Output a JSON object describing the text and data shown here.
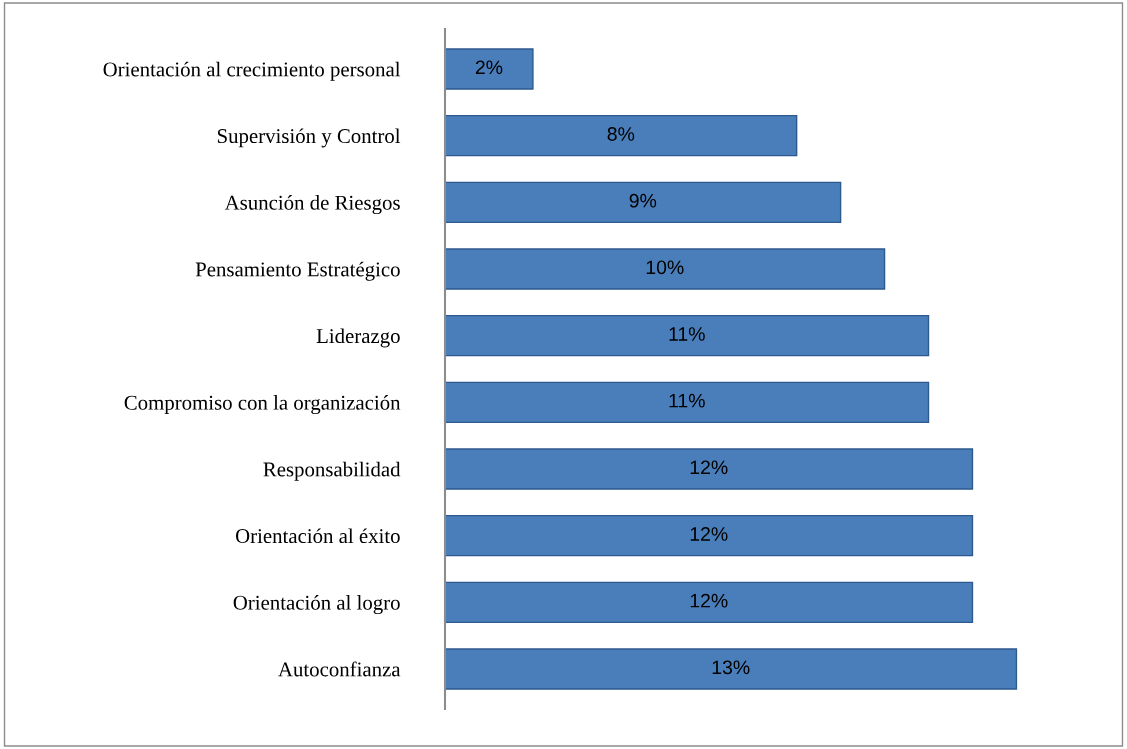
{
  "chart_data": {
    "type": "bar",
    "orientation": "horizontal",
    "categories": [
      "Orientación al crecimiento personal",
      "Supervisión y Control",
      "Asunción de Riesgos",
      "Pensamiento Estratégico",
      "Liderazgo",
      "Compromiso con la organización",
      "Responsabilidad",
      "Orientación al éxito",
      "Orientación al logro",
      "Autoconfianza"
    ],
    "values": [
      2,
      8,
      9,
      10,
      11,
      11,
      12,
      12,
      12,
      13
    ],
    "value_labels": [
      "2%",
      "8%",
      "9%",
      "10%",
      "11%",
      "11%",
      "12%",
      "12%",
      "12%",
      "13%"
    ],
    "color": "#4a7ebb",
    "grid": false,
    "legend": false
  }
}
